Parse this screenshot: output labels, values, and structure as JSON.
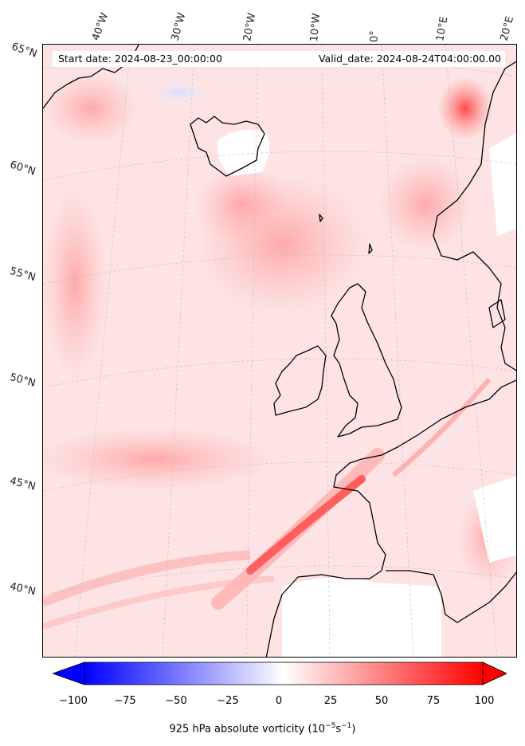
{
  "header": {
    "start_date": "Start date: 2024-08-23_00:00:00",
    "valid_date": "Valid_date: 2024-08-24T04:00:00.00"
  },
  "longitude_labels": [
    "40°W",
    "30°W",
    "20°W",
    "10°W",
    "0°",
    "10°E",
    "20°E"
  ],
  "latitude_labels": [
    "65°N",
    "60°N",
    "55°N",
    "50°N",
    "45°N",
    "40°N"
  ],
  "colorbar": {
    "ticks": [
      "−100",
      "−75",
      "−50",
      "−25",
      "0",
      "25",
      "50",
      "75",
      "100"
    ],
    "label": "925 hPa absolute vorticity (10",
    "label_exp1": "−5",
    "label_mid": "s",
    "label_exp2": "−1",
    "label_end": ")",
    "range": [
      -100,
      100
    ],
    "low_color": "#0000ff",
    "mid_color": "#ffffff",
    "high_color": "#ff0000"
  },
  "colors": {
    "background_field": "#fde6e6",
    "coastline": "#000000",
    "gridline": "#bbbbbb"
  }
}
